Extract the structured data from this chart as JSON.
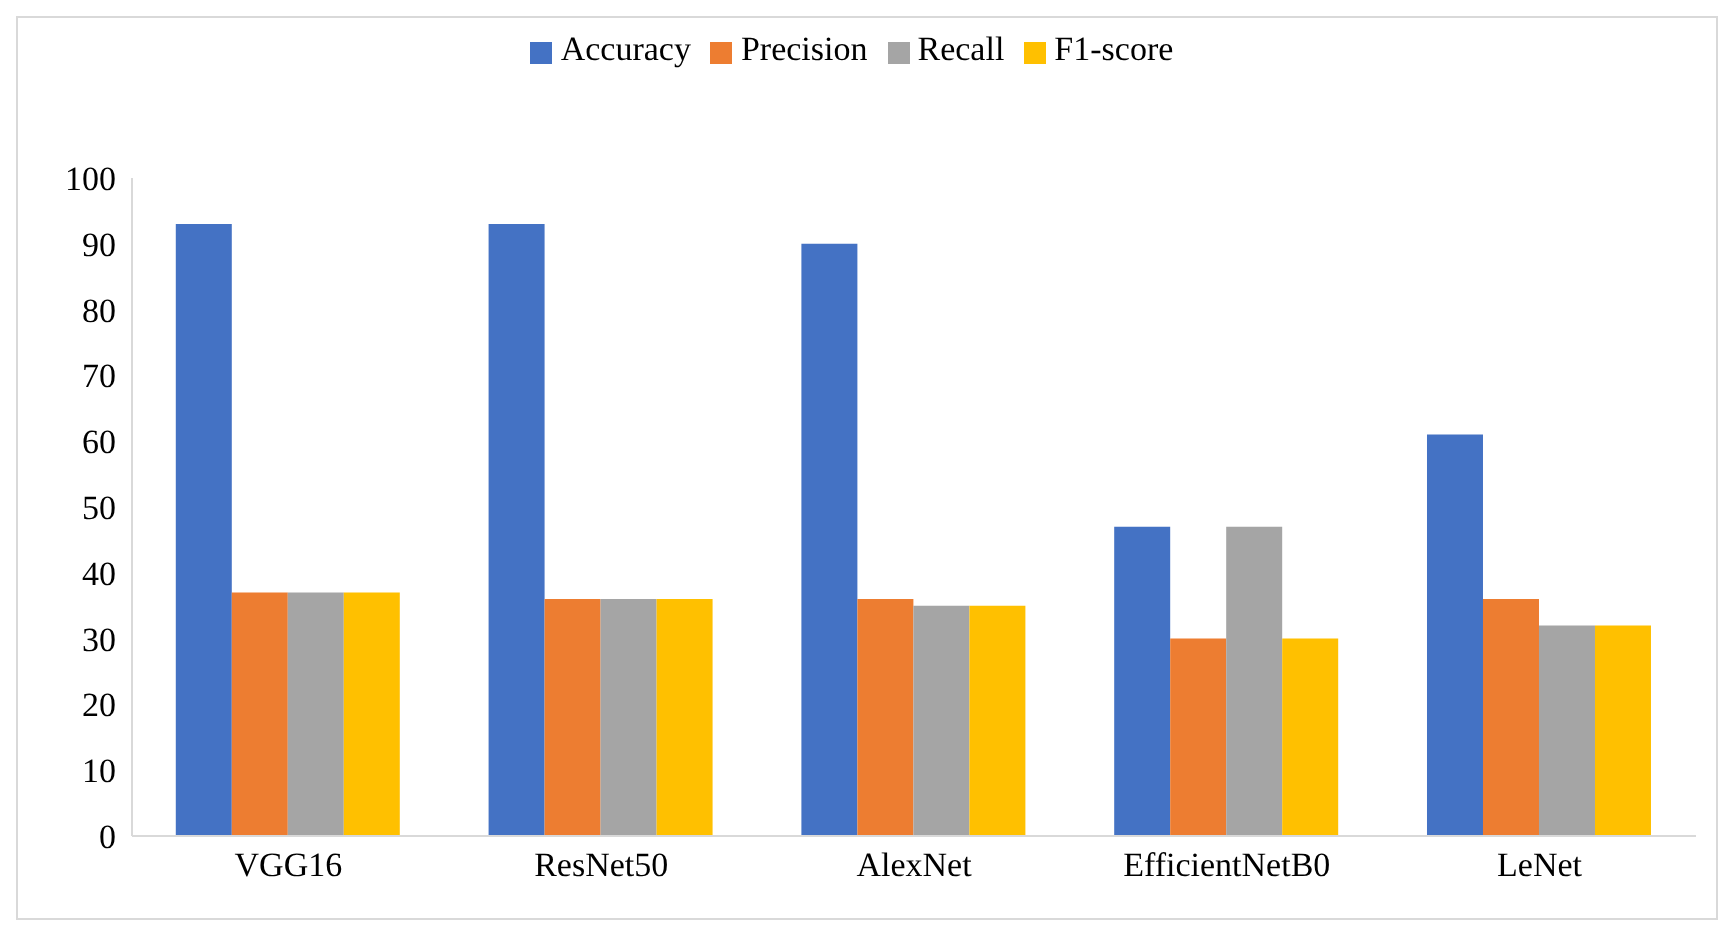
{
  "chart_data": {
    "type": "bar",
    "categories": [
      "VGG16",
      "ResNet50",
      "AlexNet",
      "EfficientNetB0",
      "LeNet"
    ],
    "series": [
      {
        "name": "Accuracy",
        "color": "#4472c4",
        "values": [
          93,
          93,
          90,
          47,
          61
        ]
      },
      {
        "name": "Precision",
        "color": "#ed7d31",
        "values": [
          37,
          36,
          36,
          30,
          36
        ]
      },
      {
        "name": "Recall",
        "color": "#a5a5a5",
        "values": [
          37,
          36,
          35,
          47,
          32
        ]
      },
      {
        "name": "F1-score",
        "color": "#ffc000",
        "values": [
          37,
          36,
          35,
          30,
          32
        ]
      }
    ],
    "ylim": [
      0,
      100
    ],
    "yticks": [
      0,
      10,
      20,
      30,
      40,
      50,
      60,
      70,
      80,
      90,
      100
    ],
    "grid": false,
    "legend": "top"
  }
}
